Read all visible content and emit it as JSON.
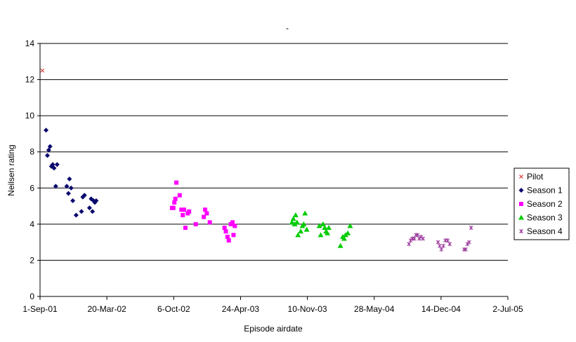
{
  "chart_data": {
    "type": "scatter",
    "title": "-",
    "xlabel": "Episode airdate",
    "ylabel": "Neilsen rating",
    "xlim": [
      "2001-09-01",
      "2005-07-02"
    ],
    "ylim": [
      0,
      14
    ],
    "yticks": [
      0,
      2,
      4,
      6,
      8,
      10,
      12,
      14
    ],
    "xticks": [
      {
        "date": "2001-09-01",
        "label": "1-Sep-01"
      },
      {
        "date": "2002-03-20",
        "label": "20-Mar-02"
      },
      {
        "date": "2002-10-06",
        "label": "6-Oct-02"
      },
      {
        "date": "2003-04-24",
        "label": "24-Apr-03"
      },
      {
        "date": "2003-11-10",
        "label": "10-Nov-03"
      },
      {
        "date": "2004-05-28",
        "label": "28-May-04"
      },
      {
        "date": "2004-12-14",
        "label": "14-Dec-04"
      },
      {
        "date": "2005-07-02",
        "label": "2-Jul-05"
      }
    ],
    "grid": "horizontal",
    "legend_position": "right",
    "series": [
      {
        "name": "Pilot",
        "marker": "x",
        "color": "#d62728",
        "points": [
          {
            "x": "2001-09-08",
            "y": 12.5
          }
        ]
      },
      {
        "name": "Season 1",
        "marker": "diamond",
        "color": "#0a0a6e",
        "points": [
          {
            "x": "2001-09-19",
            "y": 9.2
          },
          {
            "x": "2001-09-23",
            "y": 7.8
          },
          {
            "x": "2001-09-27",
            "y": 8.1
          },
          {
            "x": "2001-10-01",
            "y": 8.3
          },
          {
            "x": "2001-10-05",
            "y": 7.2
          },
          {
            "x": "2001-10-09",
            "y": 7.3
          },
          {
            "x": "2001-10-13",
            "y": 7.1
          },
          {
            "x": "2001-10-18",
            "y": 6.1
          },
          {
            "x": "2001-10-22",
            "y": 7.3
          },
          {
            "x": "2001-11-20",
            "y": 6.1
          },
          {
            "x": "2001-11-25",
            "y": 5.7
          },
          {
            "x": "2001-11-28",
            "y": 6.5
          },
          {
            "x": "2001-12-03",
            "y": 6.0
          },
          {
            "x": "2001-12-08",
            "y": 5.3
          },
          {
            "x": "2001-12-18",
            "y": 4.5
          },
          {
            "x": "2002-01-03",
            "y": 4.7
          },
          {
            "x": "2002-01-07",
            "y": 5.5
          },
          {
            "x": "2002-01-12",
            "y": 5.6
          },
          {
            "x": "2002-01-27",
            "y": 4.9
          },
          {
            "x": "2002-02-01",
            "y": 5.4
          },
          {
            "x": "2002-02-05",
            "y": 4.7
          },
          {
            "x": "2002-02-08",
            "y": 5.3
          },
          {
            "x": "2002-02-12",
            "y": 5.2
          },
          {
            "x": "2002-02-16",
            "y": 5.3
          }
        ]
      },
      {
        "name": "Season 2",
        "marker": "square",
        "color": "#ff00ff",
        "points": [
          {
            "x": "2002-10-01",
            "y": 4.9
          },
          {
            "x": "2002-10-05",
            "y": 4.9
          },
          {
            "x": "2002-10-08",
            "y": 5.2
          },
          {
            "x": "2002-10-11",
            "y": 5.4
          },
          {
            "x": "2002-10-14",
            "y": 6.3
          },
          {
            "x": "2002-10-24",
            "y": 5.6
          },
          {
            "x": "2002-10-29",
            "y": 4.8
          },
          {
            "x": "2002-11-02",
            "y": 4.5
          },
          {
            "x": "2002-11-06",
            "y": 4.8
          },
          {
            "x": "2002-11-10",
            "y": 3.8
          },
          {
            "x": "2002-11-17",
            "y": 4.6
          },
          {
            "x": "2002-11-21",
            "y": 4.7
          },
          {
            "x": "2002-12-11",
            "y": 4.0
          },
          {
            "x": "2003-01-04",
            "y": 4.4
          },
          {
            "x": "2003-01-08",
            "y": 4.8
          },
          {
            "x": "2003-01-13",
            "y": 4.6
          },
          {
            "x": "2003-01-22",
            "y": 4.1
          },
          {
            "x": "2003-03-07",
            "y": 3.8
          },
          {
            "x": "2003-03-11",
            "y": 3.6
          },
          {
            "x": "2003-03-16",
            "y": 3.3
          },
          {
            "x": "2003-03-20",
            "y": 3.1
          },
          {
            "x": "2003-03-26",
            "y": 4.0
          },
          {
            "x": "2003-03-31",
            "y": 4.1
          },
          {
            "x": "2003-04-03",
            "y": 3.4
          },
          {
            "x": "2003-04-07",
            "y": 3.9
          }
        ]
      },
      {
        "name": "Season 3",
        "marker": "triangle",
        "color": "#00cc00",
        "points": [
          {
            "x": "2003-09-25",
            "y": 4.1
          },
          {
            "x": "2003-09-29",
            "y": 4.3
          },
          {
            "x": "2003-10-03",
            "y": 4.0
          },
          {
            "x": "2003-10-06",
            "y": 4.5
          },
          {
            "x": "2003-10-10",
            "y": 4.1
          },
          {
            "x": "2003-10-13",
            "y": 3.4
          },
          {
            "x": "2003-10-21",
            "y": 3.6
          },
          {
            "x": "2003-10-26",
            "y": 3.9
          },
          {
            "x": "2003-10-30",
            "y": 4.0
          },
          {
            "x": "2003-11-03",
            "y": 4.6
          },
          {
            "x": "2003-11-08",
            "y": 3.7
          },
          {
            "x": "2003-12-16",
            "y": 3.9
          },
          {
            "x": "2003-12-20",
            "y": 3.4
          },
          {
            "x": "2003-12-27",
            "y": 4.0
          },
          {
            "x": "2004-01-01",
            "y": 3.8
          },
          {
            "x": "2004-01-05",
            "y": 3.6
          },
          {
            "x": "2004-01-09",
            "y": 3.5
          },
          {
            "x": "2004-01-13",
            "y": 3.8
          },
          {
            "x": "2004-02-17",
            "y": 2.8
          },
          {
            "x": "2004-02-24",
            "y": 3.3
          },
          {
            "x": "2004-02-28",
            "y": 3.2
          },
          {
            "x": "2004-03-03",
            "y": 3.4
          },
          {
            "x": "2004-03-10",
            "y": 3.5
          },
          {
            "x": "2004-03-17",
            "y": 3.9
          }
        ]
      },
      {
        "name": "Season 4",
        "marker": "star",
        "color": "#993399",
        "points": [
          {
            "x": "2004-09-09",
            "y": 2.9
          },
          {
            "x": "2004-09-14",
            "y": 3.1
          },
          {
            "x": "2004-09-19",
            "y": 3.2
          },
          {
            "x": "2004-09-25",
            "y": 3.2
          },
          {
            "x": "2004-09-30",
            "y": 3.4
          },
          {
            "x": "2004-10-05",
            "y": 3.4
          },
          {
            "x": "2004-10-10",
            "y": 3.2
          },
          {
            "x": "2004-10-15",
            "y": 3.3
          },
          {
            "x": "2004-10-21",
            "y": 3.2
          },
          {
            "x": "2004-12-05",
            "y": 3.0
          },
          {
            "x": "2004-12-10",
            "y": 2.8
          },
          {
            "x": "2004-12-15",
            "y": 2.6
          },
          {
            "x": "2004-12-21",
            "y": 2.8
          },
          {
            "x": "2004-12-27",
            "y": 3.1
          },
          {
            "x": "2005-01-03",
            "y": 3.1
          },
          {
            "x": "2005-01-09",
            "y": 2.9
          },
          {
            "x": "2005-02-21",
            "y": 2.6
          },
          {
            "x": "2005-02-26",
            "y": 2.6
          },
          {
            "x": "2005-03-03",
            "y": 2.9
          },
          {
            "x": "2005-03-08",
            "y": 3.0
          },
          {
            "x": "2005-03-14",
            "y": 3.8
          }
        ]
      }
    ]
  }
}
